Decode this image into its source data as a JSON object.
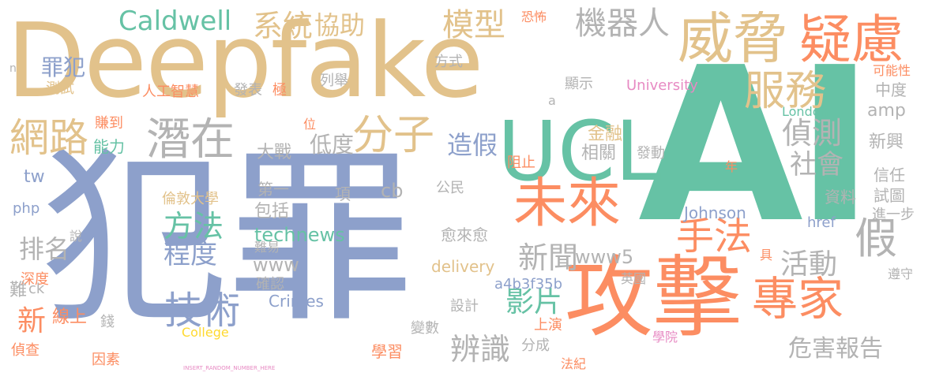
{
  "palette": {
    "tan": "#E2C28B",
    "green": "#66C2A5",
    "blue": "#8DA0CB",
    "orange": "#FC8D62",
    "gray": "#B3B3B3",
    "pink": "#E78AC3",
    "lime": "#A6D854",
    "yellow": "#FFD92F"
  },
  "words": [
    {
      "text": "Deepfake",
      "color": "tan",
      "size": 120
    },
    {
      "text": "AI",
      "color": "green",
      "size": 250
    },
    {
      "text": "犯罪",
      "color": "blue",
      "size": 230
    },
    {
      "text": "攻擊",
      "color": "orange",
      "size": 110
    },
    {
      "text": "專家",
      "color": "orange",
      "size": 80
    },
    {
      "text": "威脅",
      "color": "tan",
      "size": 70
    },
    {
      "text": "疑慮",
      "color": "orange",
      "size": 64
    },
    {
      "text": "UCL",
      "color": "green",
      "size": 100
    },
    {
      "text": "未來",
      "color": "orange",
      "size": 66
    },
    {
      "text": "潛在",
      "color": "gray",
      "size": 56
    },
    {
      "text": "網路",
      "color": "tan",
      "size": 48
    },
    {
      "text": "服務",
      "color": "tan",
      "size": 50
    },
    {
      "text": "分子",
      "color": "tan",
      "size": 52
    },
    {
      "text": "系統",
      "color": "tan",
      "size": 36
    },
    {
      "text": "協助",
      "color": "tan",
      "size": 30
    },
    {
      "text": "模型",
      "color": "tan",
      "size": 38
    },
    {
      "text": "機器人",
      "color": "gray",
      "size": 38
    },
    {
      "text": "Caldwell",
      "color": "green",
      "size": 30
    },
    {
      "text": "罪犯",
      "color": "blue",
      "size": 26
    },
    {
      "text": "手法",
      "color": "orange",
      "size": 46
    },
    {
      "text": "偵測",
      "color": "gray",
      "size": 36
    },
    {
      "text": "社會",
      "color": "gray",
      "size": 32
    },
    {
      "text": "假",
      "color": "gray",
      "size": 52
    },
    {
      "text": "活動",
      "color": "gray",
      "size": 36
    },
    {
      "text": "新聞",
      "color": "gray",
      "size": 36
    },
    {
      "text": "影片",
      "color": "green",
      "size": 36
    },
    {
      "text": "方法",
      "color": "green",
      "size": 36
    },
    {
      "text": "程度",
      "color": "blue",
      "size": 32
    },
    {
      "text": "技術",
      "color": "blue",
      "size": 48
    },
    {
      "text": "辨識",
      "color": "gray",
      "size": 36
    },
    {
      "text": "危害報告",
      "color": "gray",
      "size": 28
    },
    {
      "text": "排名",
      "color": "gray",
      "size": 30
    },
    {
      "text": "新",
      "color": "orange",
      "size": 36
    },
    {
      "text": "造假",
      "color": "blue",
      "size": 30
    },
    {
      "text": "低度",
      "color": "gray",
      "size": 26
    },
    {
      "text": "大戰",
      "color": "gray",
      "size": 22
    },
    {
      "text": "能力",
      "color": "green",
      "size": 20
    },
    {
      "text": "賺到",
      "color": "orange",
      "size": 18
    },
    {
      "text": "人工智慧",
      "color": "orange",
      "size": 18
    },
    {
      "text": "發表",
      "color": "gray",
      "size": 18
    },
    {
      "text": "極",
      "color": "orange",
      "size": 18
    },
    {
      "text": "列舉",
      "color": "gray",
      "size": 18
    },
    {
      "text": "方式",
      "color": "gray",
      "size": 18
    },
    {
      "text": "顯示",
      "color": "gray",
      "size": 18
    },
    {
      "text": "University",
      "color": "pink",
      "size": 18
    },
    {
      "text": "London",
      "color": "green",
      "size": 16
    },
    {
      "text": "amp",
      "color": "gray",
      "size": 22
    },
    {
      "text": "中度",
      "color": "gray",
      "size": 20
    },
    {
      "text": "可能性",
      "color": "orange",
      "size": 16
    },
    {
      "text": "新興",
      "color": "gray",
      "size": 22
    },
    {
      "text": "信任",
      "color": "gray",
      "size": 20
    },
    {
      "text": "試圖",
      "color": "gray",
      "size": 20
    },
    {
      "text": "進一步",
      "color": "gray",
      "size": 18
    },
    {
      "text": "資料",
      "color": "gray",
      "size": 20
    },
    {
      "text": "遵守",
      "color": "gray",
      "size": 16
    },
    {
      "text": "Johnson",
      "color": "blue",
      "size": 20
    },
    {
      "text": "href",
      "color": "blue",
      "size": 18
    },
    {
      "text": "金融",
      "color": "tan",
      "size": 22
    },
    {
      "text": "相關",
      "color": "gray",
      "size": 22
    },
    {
      "text": "阻止",
      "color": "orange",
      "size": 18
    },
    {
      "text": "發動",
      "color": "gray",
      "size": 18
    },
    {
      "text": "年",
      "color": "orange",
      "size": 16
    },
    {
      "text": "tw",
      "color": "blue",
      "size": 22
    },
    {
      "text": "php",
      "color": "blue",
      "size": 18
    },
    {
      "text": "倫敦大學",
      "color": "tan",
      "size": 18
    },
    {
      "text": "第一",
      "color": "gray",
      "size": 20
    },
    {
      "text": "項",
      "color": "gray",
      "size": 20
    },
    {
      "text": "cb",
      "color": "gray",
      "size": 24
    },
    {
      "text": "公民",
      "color": "gray",
      "size": 18
    },
    {
      "text": "包括",
      "color": "gray",
      "size": 22
    },
    {
      "text": "technews",
      "color": "green",
      "size": 24
    },
    {
      "text": "愈來愈",
      "color": "gray",
      "size": 20
    },
    {
      "text": "www",
      "color": "gray",
      "size": 24
    },
    {
      "text": "www5",
      "color": "gray",
      "size": 24
    },
    {
      "text": "難易",
      "color": "gray",
      "size": 16
    },
    {
      "text": "delivery",
      "color": "tan",
      "size": 20
    },
    {
      "text": "a4b3f35b",
      "color": "blue",
      "size": 18
    },
    {
      "text": "確認",
      "color": "gray",
      "size": 18
    },
    {
      "text": "Crimes",
      "color": "blue",
      "size": 20
    },
    {
      "text": "英國",
      "color": "gray",
      "size": 16
    },
    {
      "text": "具",
      "color": "orange",
      "size": 16
    },
    {
      "text": "上演",
      "color": "orange",
      "size": 18
    },
    {
      "text": "設計",
      "color": "gray",
      "size": 18
    },
    {
      "text": "變數",
      "color": "gray",
      "size": 18
    },
    {
      "text": "學習",
      "color": "orange",
      "size": 20
    },
    {
      "text": "分成",
      "color": "gray",
      "size": 18
    },
    {
      "text": "法紀",
      "color": "orange",
      "size": 16
    },
    {
      "text": "學院",
      "color": "pink",
      "size": 16
    },
    {
      "text": "College",
      "color": "yellow",
      "size": 16
    },
    {
      "text": "線上",
      "color": "orange",
      "size": 22
    },
    {
      "text": "深度",
      "color": "orange",
      "size": 18
    },
    {
      "text": "難",
      "color": "gray",
      "size": 22
    },
    {
      "text": "ck",
      "color": "gray",
      "size": 18
    },
    {
      "text": "偵查",
      "color": "orange",
      "size": 18
    },
    {
      "text": "因素",
      "color": "orange",
      "size": 18
    },
    {
      "text": "錢",
      "color": "gray",
      "size": 18
    },
    {
      "text": "說",
      "color": "gray",
      "size": 16
    },
    {
      "text": "恐怖",
      "color": "orange",
      "size": 16
    },
    {
      "text": "n",
      "color": "gray",
      "size": 14
    },
    {
      "text": "測試",
      "color": "tan",
      "size": 18
    },
    {
      "text": "位",
      "color": "orange",
      "size": 16
    },
    {
      "text": "a",
      "color": "gray",
      "size": 16
    },
    {
      "text": "INSERT_RANDOM_NUMBER_HERE",
      "color": "pink",
      "size": 8
    }
  ]
}
